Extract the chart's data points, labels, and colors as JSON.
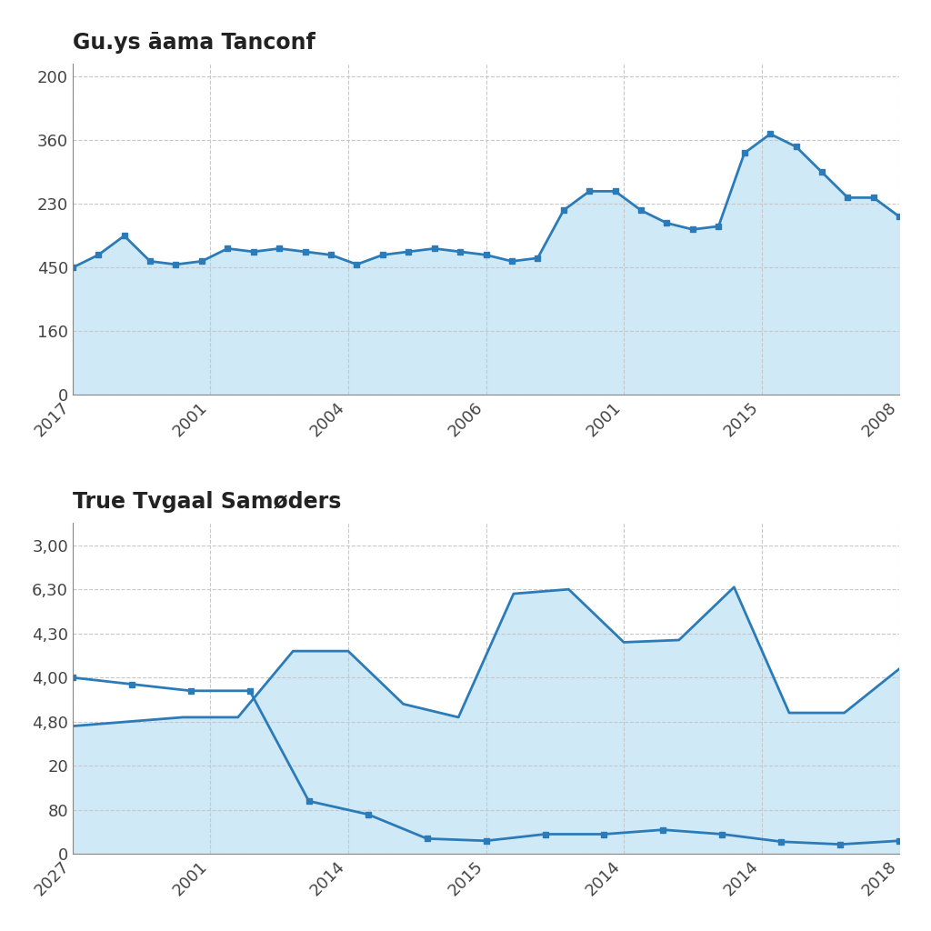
{
  "title1": "Gu.ys āama Tanconf",
  "title2": "True Tvgaal Samøders",
  "chart1": {
    "x_labels": [
      "2017",
      "2001",
      "2004",
      "2006",
      "2001",
      "2015",
      "2008"
    ],
    "y_tick_positions": [
      0,
      1,
      2,
      3,
      4,
      5
    ],
    "y_tick_labels": [
      "0",
      "160",
      "450",
      "230",
      "360",
      "200"
    ],
    "y_data": [
      2.0,
      2.2,
      2.5,
      2.1,
      2.05,
      2.1,
      2.3,
      2.25,
      2.3,
      2.25,
      2.2,
      2.05,
      2.2,
      2.25,
      2.3,
      2.25,
      2.2,
      2.1,
      2.15,
      2.9,
      3.2,
      3.2,
      2.9,
      2.7,
      2.6,
      2.65,
      3.8,
      4.1,
      3.9,
      3.5,
      3.1,
      3.1,
      2.8
    ],
    "line_color": "#2B7BB9",
    "fill_color": "#D0E9F7",
    "marker": "s",
    "ylim": [
      0,
      5.2
    ]
  },
  "chart2": {
    "x_labels": [
      "2027",
      "2001",
      "2014",
      "2015",
      "2014",
      "2014",
      "2018"
    ],
    "y_tick_positions": [
      0,
      1,
      2,
      3,
      4,
      5,
      6,
      7
    ],
    "y_tick_labels": [
      "0",
      "80",
      "20",
      "4,80",
      "4,00",
      "4,30",
      "6,30",
      "3,00"
    ],
    "line1_y": [
      4.0,
      3.85,
      3.7,
      3.7,
      1.2,
      0.9,
      0.35,
      0.3,
      0.45,
      0.45,
      0.55,
      0.45,
      0.28,
      0.22,
      0.3
    ],
    "line2_y": [
      2.9,
      3.0,
      3.1,
      3.1,
      4.6,
      4.6,
      3.4,
      3.1,
      5.9,
      6.0,
      4.8,
      4.85,
      6.05,
      3.2,
      3.2,
      4.2
    ],
    "line_color": "#2B7BB9",
    "fill_color": "#D0E9F7",
    "ylim": [
      0,
      7.5
    ]
  },
  "background_color": "#FFFFFF",
  "grid_color": "#C8C8C8",
  "title_fontsize": 17,
  "tick_fontsize": 13
}
